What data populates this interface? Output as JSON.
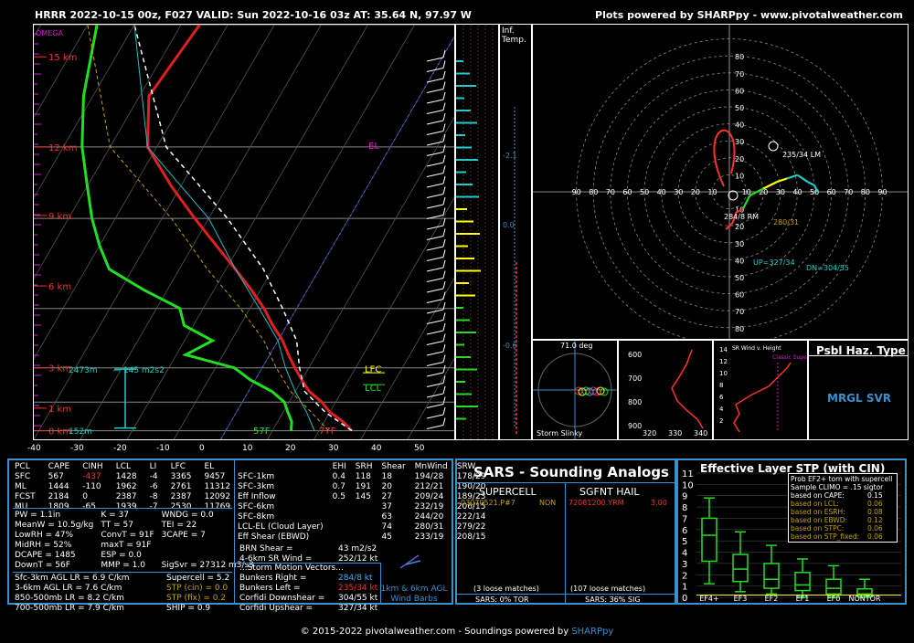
{
  "header": {
    "title": "HRRR 2022-10-15 00z, F027  VALID: Sun 2022-10-16 03z  AT: 35.64 N, 97.97 W",
    "credit": "Plots powered by SHARPpy - www.pivotalweather.com"
  },
  "footer": {
    "text": "© 2015-2022 pivotalweather.com - Soundings powered by ",
    "link": "SHARPpy"
  },
  "colors": {
    "temp": "#e02020",
    "dewpoint": "#22dd22",
    "parcel": "#ffffff",
    "wetbulb": "#22bbcc",
    "box_border": "#3a8fd0",
    "label_red": "#ff3030",
    "label_cyan": "#22cccc"
  },
  "skewt": {
    "pressure_ticks": [
      "100",
      "200",
      "300",
      "500",
      "700",
      "850",
      "1000"
    ],
    "temp_ticks": [
      "-40",
      "-30",
      "-20",
      "-10",
      "0",
      "10",
      "20",
      "30",
      "40",
      "50"
    ],
    "height_labels": [
      "15 km",
      "12 km",
      "9 km",
      "6 km",
      "3 km",
      "1 km",
      "0 km"
    ],
    "omega_label": "OMEGA",
    "el_label": "EL",
    "lfc_label": "LFC",
    "lcl_label": "LCL",
    "dcape_top": "2473m",
    "srh_label": "145 m2s2",
    "sfc_hgt": "152m",
    "sfc_t": "77F",
    "sfc_td": "57F"
  },
  "inftemp": {
    "label": "Inf.\nTemp.",
    "values": [
      "-2.1",
      "0.0",
      "-0.6"
    ]
  },
  "hodograph": {
    "rings": [
      "10",
      "20",
      "30",
      "40",
      "50",
      "60",
      "70",
      "80"
    ],
    "x_ticks": [
      "90",
      "80",
      "70",
      "60",
      "50",
      "40",
      "30",
      "20",
      "10",
      "10",
      "20",
      "30",
      "40",
      "50",
      "60",
      "70",
      "80",
      "90"
    ],
    "lm": "235/34 LM",
    "rm": "284/8 RM",
    "mean": "280/31",
    "up": "UP=327/34",
    "dn": "DN=304/55"
  },
  "thetae": {
    "label": "71.0 deg",
    "slinky": "Storm Slinky",
    "p_ticks": [
      "600",
      "700",
      "800",
      "900"
    ],
    "x_ticks": [
      "320",
      "330",
      "340"
    ]
  },
  "srwind": {
    "label": "SR Wind v. Height",
    "classic": "Classic Supercell",
    "ticks": [
      "14",
      "12",
      "10",
      "8",
      "6",
      "4",
      "2"
    ]
  },
  "psbl": {
    "title": "Psbl Haz. Type",
    "value": "MRGL SVR"
  },
  "parcels": {
    "headers": [
      "PCL",
      "CAPE",
      "CINH",
      "LCL",
      "LI",
      "LFC",
      "EL"
    ],
    "rows": [
      [
        "SFC",
        "567",
        "-437",
        "1428",
        "-4",
        "3365",
        "9457"
      ],
      [
        "ML",
        "1444",
        "-110",
        "1962",
        "-6",
        "2761",
        "11312"
      ],
      [
        "FCST",
        "2184",
        "0",
        "2387",
        "-8",
        "2387",
        "12092"
      ],
      [
        "MU",
        "1809",
        "-65",
        "1939",
        "-7",
        "2530",
        "11769"
      ]
    ]
  },
  "indices": [
    [
      "PW = 1.1in",
      "K = 37",
      "WNDG = 0.0"
    ],
    [
      "MeanW = 10.5g/kg",
      "TT = 57",
      "TEI = 22"
    ],
    [
      "LowRH = 47%",
      "ConvT = 91F",
      "3CAPE = 7"
    ],
    [
      "MidRH = 52%",
      "maxT = 91F",
      ""
    ],
    [
      "DCAPE = 1485",
      "ESP = 0.0",
      ""
    ],
    [
      "DownT = 56F",
      "MMP = 1.0",
      "SigSvr = 27312 m3/s3"
    ]
  ],
  "lapse": [
    "Sfc-3km AGL LR = 6.9 C/km",
    "3-6km AGL LR = 7.6 C/km",
    "850-500mb LR = 8.2 C/km",
    "700-500mb LR = 7.9 C/km"
  ],
  "compos": [
    {
      "label": "Supercell = 5.2",
      "color": "#ffffff"
    },
    {
      "label": "STP (cin) = 0.0",
      "color": "#c8a000"
    },
    {
      "label": "STP (fix) = 0.2",
      "color": "#c8a000"
    },
    {
      "label": "SHIP = 0.9",
      "color": "#ffffff"
    }
  ],
  "kinematics": {
    "headers": [
      "",
      "EHI",
      "SRH",
      "Shear",
      "MnWind",
      "SRW"
    ],
    "rows": [
      [
        "SFC-1km",
        "0.4",
        "118",
        "18",
        "194/28",
        "178/29"
      ],
      [
        "SFC-3km",
        "0.7",
        "191",
        "20",
        "212/21",
        "190/20"
      ],
      [
        "Eff Inflow",
        "0.5",
        "145",
        "27",
        "209/24",
        "189/23"
      ],
      [
        "",
        "",
        "",
        "",
        "",
        ""
      ],
      [
        "SFC-6km",
        "",
        "",
        "37",
        "232/19",
        "206/15"
      ],
      [
        "SFC-8km",
        "",
        "",
        "63",
        "244/20",
        "222/14"
      ],
      [
        "LCL-EL (Cloud Layer)",
        "",
        "",
        "74",
        "280/31",
        "279/22"
      ],
      [
        "Eff Shear (EBWD)",
        "",
        "",
        "45",
        "233/19",
        "208/15"
      ]
    ],
    "brn": "BRN Shear =",
    "brn_val": "43 m2/s2",
    "sr46": "4-6km SR Wind =",
    "sr46_val": "252/12 kt",
    "smv_title": "...Storm Motion Vectors...",
    "vectors": [
      {
        "label": "Bunkers Right =",
        "value": "284/8 kt",
        "color": "#4aa8ff"
      },
      {
        "label": "Bunkers Left =",
        "value": "235/34 kt",
        "color": "#ff3030"
      },
      {
        "label": "Corfidi Downshear =",
        "value": "304/55 kt",
        "color": "#ffffff"
      },
      {
        "label": "Corfidi Upshear =",
        "value": "327/34 kt",
        "color": "#ffffff"
      }
    ],
    "barbs_label": "1km & 6km AGL\nWind Barbs"
  },
  "sars": {
    "title": "SARS - Sounding Analogs",
    "supercell": "SUPERCELL",
    "hail": "SGFNT HAIL",
    "sc_match": "03070521.P#7",
    "sc_type": "NON",
    "hail_match": "72081200.YRM",
    "hail_size": "3.00",
    "sc_loose": "(3 loose matches)",
    "hail_loose": "(107 loose matches)",
    "sc_prob": "SARS: 0% TOR",
    "hail_prob": "SARS: 36% SIG"
  },
  "stp": {
    "title": "Effective Layer STP (with CIN)",
    "prob_title": "Prob EF2+ torn with supercell",
    "climo": "Sample CLIMO = .15 sigtor",
    "probs": [
      {
        "label": "based on CAPE:",
        "value": "0.15",
        "color": "#ffffff"
      },
      {
        "label": "based on LCL:",
        "value": "0.06",
        "color": "#c8a000"
      },
      {
        "label": "based on ESRH:",
        "value": "0.08",
        "color": "#c8a000"
      },
      {
        "label": "based on EBWD:",
        "value": "0.12",
        "color": "#c8a000"
      },
      {
        "label": "based on STPC:",
        "value": "0.06",
        "color": "#c8a000"
      },
      {
        "label": "based on STP_fixed:",
        "value": "0.06",
        "color": "#c8a000"
      }
    ],
    "y_ticks": [
      "11",
      "10",
      "9",
      "8",
      "7",
      "6",
      "5",
      "4",
      "3",
      "2",
      "1",
      "0"
    ],
    "categories": [
      "EF4+",
      "EF3",
      "EF2",
      "EF1",
      "EF0",
      "NONTOR"
    ]
  },
  "chart_data": [
    {
      "type": "line",
      "title": "Skew-T log-P",
      "ylabel": "Pressure (mb)",
      "xlabel": "Temperature (C)",
      "ylim": [
        1000,
        100
      ],
      "xlim": [
        -40,
        50
      ],
      "series": [
        {
          "name": "Temperature",
          "p": [
            1000,
            950,
            900,
            850,
            800,
            750,
            700,
            650,
            600,
            550,
            500,
            450,
            400,
            350,
            300,
            250,
            200,
            150,
            100
          ],
          "values": [
            27,
            24,
            20,
            17,
            13,
            10,
            7,
            4,
            1,
            -3,
            -7,
            -12,
            -18,
            -25,
            -33,
            -42,
            -52,
            -58,
            -56
          ]
        },
        {
          "name": "Dewpoint",
          "p": [
            1000,
            950,
            900,
            850,
            800,
            750,
            700,
            650,
            600,
            550,
            500,
            450,
            400,
            350,
            300,
            250,
            200,
            150,
            100
          ],
          "values": [
            14,
            13,
            11,
            9,
            5,
            -1,
            -6,
            -18,
            -14,
            -22,
            -25,
            -35,
            -45,
            -50,
            -55,
            -60,
            -66,
            -72,
            -78
          ]
        }
      ]
    },
    {
      "type": "line",
      "title": "Hodograph",
      "xlabel": "",
      "ylabel": "",
      "series": [
        {
          "name": "Hodograph",
          "u": [
            -2,
            2,
            4,
            8,
            12,
            20,
            28,
            34,
            40,
            46,
            50,
            52
          ],
          "v": [
            -6,
            -2,
            4,
            6,
            14,
            18,
            22,
            24,
            26,
            22,
            20,
            16
          ]
        }
      ]
    },
    {
      "type": "bar",
      "title": "Effective Layer STP (with CIN)",
      "categories": [
        "EF4+",
        "EF3",
        "EF2",
        "EF1",
        "EF0",
        "NONTOR"
      ],
      "boxes": [
        {
          "low": 1.2,
          "q1": 3.2,
          "median": 5.5,
          "q3": 7.0,
          "high": 8.8
        },
        {
          "low": 0.5,
          "q1": 1.4,
          "median": 2.5,
          "q3": 3.8,
          "high": 5.8
        },
        {
          "low": 0.3,
          "q1": 0.8,
          "median": 1.6,
          "q3": 3.0,
          "high": 4.6
        },
        {
          "low": 0.0,
          "q1": 0.6,
          "median": 1.1,
          "q3": 2.2,
          "high": 3.4
        },
        {
          "low": 0.0,
          "q1": 0.3,
          "median": 0.8,
          "q3": 1.6,
          "high": 2.8
        },
        {
          "low": 0.0,
          "q1": 0.05,
          "median": 0.3,
          "q3": 0.75,
          "high": 1.6
        }
      ],
      "ylim": [
        0,
        11
      ]
    }
  ]
}
